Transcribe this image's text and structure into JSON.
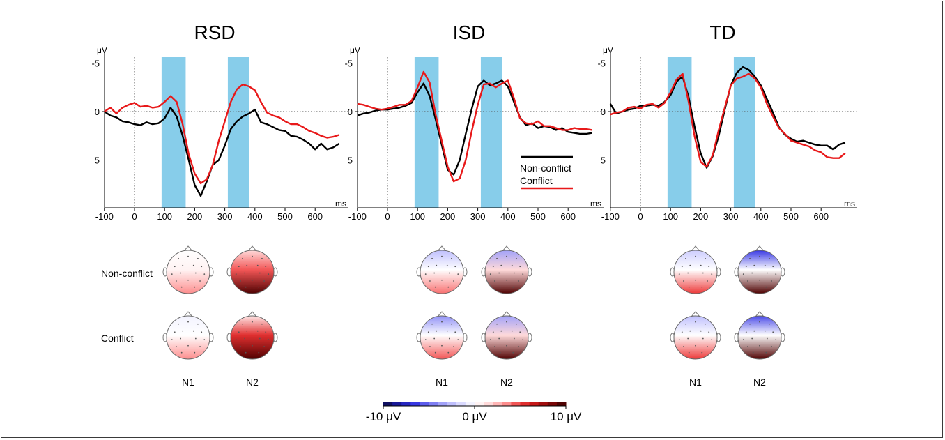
{
  "chart_data": [
    {
      "type": "line",
      "title": "RSD",
      "xlabel": "ms",
      "ylabel": "μV",
      "xlim": [
        -100,
        700
      ],
      "ylim": [
        -5,
        10
      ],
      "y_inverted": true,
      "x_ticks": [
        "-100",
        "0",
        "100",
        "200",
        "300",
        "400",
        "500",
        "600"
      ],
      "y_ticks": [
        "-5",
        "0",
        "5"
      ],
      "shaded_windows": [
        [
          90,
          170
        ],
        [
          310,
          380
        ]
      ],
      "series": [
        {
          "color": "#000000",
          "x": [
            -100,
            -80,
            -60,
            -40,
            -20,
            0,
            20,
            40,
            60,
            80,
            100,
            120,
            140,
            160,
            180,
            200,
            220,
            240,
            260,
            280,
            300,
            320,
            340,
            360,
            380,
            400,
            420,
            440,
            460,
            480,
            500,
            520,
            540,
            560,
            580,
            600,
            620,
            640,
            660,
            680
          ],
          "y": [
            0.0,
            0.4,
            0.6,
            1.0,
            1.1,
            1.3,
            1.4,
            1.1,
            1.3,
            1.2,
            0.7,
            -0.4,
            0.5,
            2.5,
            5.0,
            7.6,
            8.7,
            7.2,
            5.5,
            5.0,
            3.5,
            1.8,
            1.0,
            0.5,
            0.2,
            -0.2,
            1.1,
            1.3,
            1.6,
            1.9,
            2.0,
            2.5,
            2.6,
            2.9,
            3.3,
            3.9,
            3.3,
            3.9,
            3.7,
            3.3
          ]
        },
        {
          "color": "#e8191a",
          "x": [
            -100,
            -80,
            -60,
            -40,
            -20,
            0,
            20,
            40,
            60,
            80,
            100,
            120,
            140,
            160,
            180,
            200,
            220,
            240,
            260,
            280,
            300,
            320,
            340,
            360,
            380,
            400,
            420,
            440,
            460,
            480,
            500,
            520,
            540,
            560,
            580,
            600,
            620,
            640,
            660,
            680
          ],
          "y": [
            0.0,
            -0.4,
            0.2,
            -0.4,
            -0.7,
            -0.9,
            -0.5,
            -0.6,
            -0.4,
            -0.5,
            -1.0,
            -1.6,
            -1.0,
            1.3,
            4.4,
            6.4,
            7.4,
            7.0,
            5.5,
            3.0,
            1.0,
            -1.0,
            -2.3,
            -2.8,
            -2.6,
            -2.2,
            -1.0,
            0.1,
            0.4,
            0.6,
            1.0,
            1.3,
            1.3,
            1.6,
            2.0,
            2.2,
            2.5,
            2.7,
            2.6,
            2.4
          ]
        }
      ]
    },
    {
      "type": "line",
      "title": "ISD",
      "xlabel": "ms",
      "ylabel": "μV",
      "xlim": [
        -100,
        700
      ],
      "ylim": [
        -5,
        10
      ],
      "y_inverted": true,
      "x_ticks": [
        "-100",
        "0",
        "100",
        "200",
        "300",
        "400",
        "500",
        "600"
      ],
      "y_ticks": [
        "-5",
        "0",
        "5"
      ],
      "shaded_windows": [
        [
          90,
          170
        ],
        [
          310,
          380
        ]
      ],
      "legend": [
        "Non-conflict",
        "Conflict"
      ],
      "series": [
        {
          "name": "Non-conflict",
          "color": "#000000",
          "x": [
            -100,
            -80,
            -60,
            -40,
            -20,
            0,
            20,
            40,
            60,
            80,
            100,
            120,
            140,
            160,
            180,
            200,
            220,
            240,
            260,
            280,
            300,
            320,
            340,
            360,
            380,
            400,
            420,
            440,
            460,
            480,
            500,
            520,
            540,
            560,
            580,
            600,
            620,
            640,
            660,
            680
          ],
          "y": [
            0.4,
            0.2,
            0.1,
            -0.1,
            -0.2,
            -0.2,
            -0.3,
            -0.4,
            -0.6,
            -0.9,
            -2.0,
            -2.9,
            -1.6,
            0.8,
            3.4,
            6.0,
            6.5,
            5.0,
            2.3,
            -0.3,
            -2.6,
            -3.2,
            -2.7,
            -2.9,
            -3.2,
            -2.6,
            -1.0,
            0.6,
            1.4,
            1.2,
            1.7,
            1.5,
            1.6,
            1.9,
            1.7,
            2.1,
            2.2,
            2.3,
            2.3,
            2.2
          ]
        },
        {
          "name": "Conflict",
          "color": "#e8191a",
          "x": [
            -100,
            -80,
            -60,
            -40,
            -20,
            0,
            20,
            40,
            60,
            80,
            100,
            120,
            140,
            160,
            180,
            200,
            220,
            240,
            260,
            280,
            300,
            320,
            340,
            360,
            380,
            400,
            420,
            440,
            460,
            480,
            500,
            520,
            540,
            560,
            580,
            600,
            620,
            640,
            660,
            680
          ],
          "y": [
            -0.8,
            -0.7,
            -0.5,
            -0.3,
            -0.2,
            -0.3,
            -0.5,
            -0.7,
            -0.7,
            -1.1,
            -2.5,
            -4.1,
            -3.0,
            0.3,
            3.0,
            5.7,
            7.2,
            6.9,
            5.0,
            2.0,
            -0.7,
            -2.8,
            -2.9,
            -2.5,
            -2.9,
            -3.2,
            -1.4,
            0.7,
            1.2,
            1.3,
            1.0,
            1.5,
            1.5,
            1.7,
            1.9,
            1.9,
            1.7,
            1.8,
            1.8,
            1.9
          ]
        }
      ]
    },
    {
      "type": "line",
      "title": "TD",
      "xlabel": "ms",
      "ylabel": "μV",
      "xlim": [
        -100,
        700
      ],
      "ylim": [
        -5,
        10
      ],
      "y_inverted": true,
      "x_ticks": [
        "-100",
        "0",
        "100",
        "200",
        "300",
        "400",
        "500",
        "600"
      ],
      "y_ticks": [
        "-5",
        "0",
        "5"
      ],
      "shaded_windows": [
        [
          90,
          170
        ],
        [
          310,
          380
        ]
      ],
      "series": [
        {
          "color": "#000000",
          "x": [
            -100,
            -80,
            -60,
            -40,
            -20,
            0,
            20,
            40,
            60,
            80,
            100,
            120,
            140,
            160,
            180,
            200,
            220,
            240,
            260,
            280,
            300,
            320,
            340,
            360,
            380,
            400,
            420,
            440,
            460,
            480,
            500,
            520,
            540,
            560,
            580,
            600,
            620,
            640,
            660,
            680
          ],
          "y": [
            -0.8,
            0.2,
            0.0,
            -0.2,
            -0.3,
            -0.6,
            -0.6,
            -0.7,
            -0.6,
            -1.0,
            -1.7,
            -3.1,
            -3.6,
            -1.5,
            1.6,
            4.3,
            5.8,
            4.6,
            2.5,
            -0.2,
            -2.7,
            -4.0,
            -4.6,
            -4.3,
            -3.6,
            -2.7,
            -1.3,
            0.1,
            1.6,
            2.4,
            2.8,
            3.1,
            3.0,
            3.2,
            3.4,
            3.5,
            3.5,
            3.9,
            3.4,
            3.2
          ]
        },
        {
          "color": "#e8191a",
          "x": [
            -100,
            -80,
            -60,
            -40,
            -20,
            0,
            20,
            40,
            60,
            80,
            100,
            120,
            140,
            160,
            180,
            200,
            220,
            240,
            260,
            280,
            300,
            320,
            340,
            360,
            380,
            400,
            420,
            440,
            460,
            480,
            500,
            520,
            540,
            560,
            580,
            600,
            620,
            640,
            660,
            680
          ],
          "y": [
            0.3,
            0.1,
            0.0,
            -0.4,
            -0.5,
            -0.3,
            -0.7,
            -0.8,
            -0.4,
            -0.9,
            -2.0,
            -3.3,
            -3.9,
            -1.0,
            2.6,
            5.2,
            5.7,
            4.5,
            1.9,
            -0.4,
            -2.7,
            -3.4,
            -3.6,
            -3.9,
            -3.4,
            -2.5,
            -0.8,
            0.5,
            1.7,
            2.3,
            3.0,
            3.2,
            3.4,
            3.6,
            4.0,
            4.2,
            4.7,
            4.8,
            4.8,
            4.3
          ]
        }
      ]
    },
    {
      "type": "heatmap",
      "title": "",
      "row_labels": [
        "Non-conflict",
        "Conflict"
      ],
      "columns": [
        "N1",
        "N2"
      ],
      "colorbar": {
        "min_label": "-10 μV",
        "mid_label": "0 μV",
        "max_label": "10 μV",
        "min": -10,
        "max": 10
      },
      "maps": {
        "RSD": {
          "Non-conflict": {
            "N1": {
              "front": 0.0,
              "mid": 0.5,
              "back": 3.5
            },
            "N2": {
              "front": 1.5,
              "mid": 4.5,
              "back": 9.5
            }
          },
          "Conflict": {
            "N1": {
              "front": -0.5,
              "mid": 0.0,
              "back": 3.5
            },
            "N2": {
              "front": 1.0,
              "mid": 5.5,
              "back": 9.5
            }
          }
        },
        "ISD": {
          "Non-conflict": {
            "N1": {
              "front": -2.5,
              "mid": 0.0,
              "back": 4.0
            },
            "N2": {
              "front": -3.5,
              "mid": 1.5,
              "back": 9.5
            }
          },
          "Conflict": {
            "N1": {
              "front": -4.0,
              "mid": 0.0,
              "back": 4.5
            },
            "N2": {
              "front": -3.5,
              "mid": 1.5,
              "back": 9.5
            }
          }
        },
        "TD": {
          "Non-conflict": {
            "N1": {
              "front": -2.0,
              "mid": 0.0,
              "back": 5.0
            },
            "N2": {
              "front": -6.5,
              "mid": 0.0,
              "back": 9.5
            }
          },
          "Conflict": {
            "N1": {
              "front": -2.5,
              "mid": 0.0,
              "back": 5.0
            },
            "N2": {
              "front": -6.0,
              "mid": 0.0,
              "back": 9.5
            }
          }
        }
      }
    }
  ],
  "colors": {
    "shade": "#87cdea",
    "non_conflict": "#000000",
    "conflict": "#e8191a"
  }
}
